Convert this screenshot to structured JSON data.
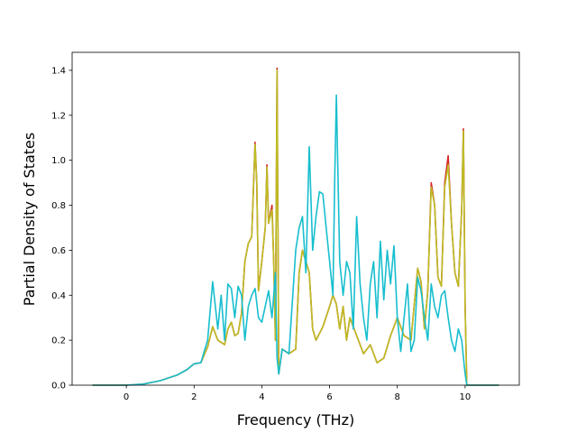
{
  "chart_data": {
    "type": "line",
    "xlabel": "Frequency (THz)",
    "ylabel": "Partial Density of States",
    "xlim": [
      -1.6,
      11.6
    ],
    "ylim": [
      0,
      1.48
    ],
    "xticks": [
      0,
      2,
      4,
      6,
      8,
      10
    ],
    "yticks": [
      0.0,
      0.2,
      0.4,
      0.6,
      0.8,
      1.0,
      1.2,
      1.4
    ],
    "grid": false,
    "series": [
      {
        "color": "#d62728",
        "points": [
          [
            -1.0,
            0.0
          ],
          [
            0.0,
            0.0
          ],
          [
            0.5,
            0.005
          ],
          [
            1.0,
            0.02
          ],
          [
            1.5,
            0.045
          ],
          [
            1.8,
            0.07
          ],
          [
            2.0,
            0.095
          ],
          [
            2.2,
            0.1
          ],
          [
            2.4,
            0.17
          ],
          [
            2.55,
            0.26
          ],
          [
            2.7,
            0.2
          ],
          [
            2.9,
            0.18
          ],
          [
            3.0,
            0.25
          ],
          [
            3.1,
            0.28
          ],
          [
            3.2,
            0.22
          ],
          [
            3.3,
            0.23
          ],
          [
            3.4,
            0.32
          ],
          [
            3.5,
            0.55
          ],
          [
            3.6,
            0.63
          ],
          [
            3.7,
            0.66
          ],
          [
            3.8,
            1.08
          ],
          [
            3.85,
            0.9
          ],
          [
            3.9,
            0.42
          ],
          [
            4.0,
            0.55
          ],
          [
            4.1,
            0.7
          ],
          [
            4.15,
            0.98
          ],
          [
            4.2,
            0.72
          ],
          [
            4.3,
            0.8
          ],
          [
            4.35,
            0.55
          ],
          [
            4.4,
            0.2
          ],
          [
            4.45,
            1.41
          ],
          [
            4.5,
            0.05
          ],
          [
            4.6,
            0.16
          ],
          [
            4.8,
            0.14
          ],
          [
            5.0,
            0.16
          ],
          [
            5.1,
            0.5
          ],
          [
            5.2,
            0.6
          ],
          [
            5.3,
            0.55
          ],
          [
            5.4,
            0.5
          ],
          [
            5.5,
            0.25
          ],
          [
            5.6,
            0.2
          ],
          [
            5.8,
            0.26
          ],
          [
            6.0,
            0.35
          ],
          [
            6.1,
            0.4
          ],
          [
            6.2,
            0.36
          ],
          [
            6.3,
            0.25
          ],
          [
            6.4,
            0.35
          ],
          [
            6.5,
            0.2
          ],
          [
            6.6,
            0.3
          ],
          [
            6.8,
            0.22
          ],
          [
            7.0,
            0.14
          ],
          [
            7.2,
            0.18
          ],
          [
            7.4,
            0.1
          ],
          [
            7.6,
            0.12
          ],
          [
            7.8,
            0.22
          ],
          [
            8.0,
            0.3
          ],
          [
            8.2,
            0.22
          ],
          [
            8.4,
            0.2
          ],
          [
            8.6,
            0.52
          ],
          [
            8.7,
            0.46
          ],
          [
            8.8,
            0.25
          ],
          [
            8.9,
            0.42
          ],
          [
            9.0,
            0.9
          ],
          [
            9.1,
            0.8
          ],
          [
            9.2,
            0.48
          ],
          [
            9.3,
            0.44
          ],
          [
            9.4,
            0.9
          ],
          [
            9.5,
            1.02
          ],
          [
            9.6,
            0.72
          ],
          [
            9.7,
            0.5
          ],
          [
            9.8,
            0.44
          ],
          [
            9.9,
            0.78
          ],
          [
            9.95,
            1.14
          ],
          [
            10.0,
            0.35
          ],
          [
            10.05,
            0.0
          ],
          [
            11.0,
            0.0
          ]
        ]
      },
      {
        "color": "#bcbd22",
        "points": [
          [
            -1.0,
            0.0
          ],
          [
            0.0,
            0.0
          ],
          [
            0.5,
            0.005
          ],
          [
            1.0,
            0.02
          ],
          [
            1.5,
            0.045
          ],
          [
            1.8,
            0.07
          ],
          [
            2.0,
            0.095
          ],
          [
            2.2,
            0.1
          ],
          [
            2.4,
            0.17
          ],
          [
            2.55,
            0.26
          ],
          [
            2.7,
            0.2
          ],
          [
            2.9,
            0.18
          ],
          [
            3.0,
            0.25
          ],
          [
            3.1,
            0.28
          ],
          [
            3.2,
            0.22
          ],
          [
            3.3,
            0.23
          ],
          [
            3.4,
            0.32
          ],
          [
            3.5,
            0.55
          ],
          [
            3.6,
            0.63
          ],
          [
            3.7,
            0.66
          ],
          [
            3.8,
            1.07
          ],
          [
            3.85,
            0.9
          ],
          [
            3.9,
            0.42
          ],
          [
            4.0,
            0.55
          ],
          [
            4.1,
            0.7
          ],
          [
            4.15,
            0.97
          ],
          [
            4.2,
            0.72
          ],
          [
            4.3,
            0.78
          ],
          [
            4.35,
            0.55
          ],
          [
            4.4,
            0.2
          ],
          [
            4.45,
            1.4
          ],
          [
            4.5,
            0.05
          ],
          [
            4.6,
            0.16
          ],
          [
            4.8,
            0.14
          ],
          [
            5.0,
            0.16
          ],
          [
            5.1,
            0.5
          ],
          [
            5.2,
            0.6
          ],
          [
            5.3,
            0.55
          ],
          [
            5.4,
            0.5
          ],
          [
            5.5,
            0.25
          ],
          [
            5.6,
            0.2
          ],
          [
            5.8,
            0.26
          ],
          [
            6.0,
            0.35
          ],
          [
            6.1,
            0.4
          ],
          [
            6.2,
            0.36
          ],
          [
            6.3,
            0.25
          ],
          [
            6.4,
            0.35
          ],
          [
            6.5,
            0.2
          ],
          [
            6.6,
            0.3
          ],
          [
            6.8,
            0.22
          ],
          [
            7.0,
            0.14
          ],
          [
            7.2,
            0.18
          ],
          [
            7.4,
            0.1
          ],
          [
            7.6,
            0.12
          ],
          [
            7.8,
            0.22
          ],
          [
            8.0,
            0.3
          ],
          [
            8.2,
            0.22
          ],
          [
            8.4,
            0.2
          ],
          [
            8.6,
            0.52
          ],
          [
            8.7,
            0.46
          ],
          [
            8.8,
            0.25
          ],
          [
            8.9,
            0.42
          ],
          [
            9.0,
            0.88
          ],
          [
            9.1,
            0.8
          ],
          [
            9.2,
            0.48
          ],
          [
            9.3,
            0.44
          ],
          [
            9.4,
            0.88
          ],
          [
            9.5,
            0.98
          ],
          [
            9.6,
            0.72
          ],
          [
            9.7,
            0.5
          ],
          [
            9.8,
            0.44
          ],
          [
            9.9,
            0.78
          ],
          [
            9.95,
            1.13
          ],
          [
            10.0,
            0.35
          ],
          [
            10.05,
            0.0
          ],
          [
            11.0,
            0.0
          ]
        ]
      },
      {
        "color": "#17becf",
        "points": [
          [
            -1.0,
            0.0
          ],
          [
            0.0,
            0.0
          ],
          [
            0.5,
            0.005
          ],
          [
            1.0,
            0.02
          ],
          [
            1.5,
            0.045
          ],
          [
            1.8,
            0.07
          ],
          [
            2.0,
            0.095
          ],
          [
            2.2,
            0.1
          ],
          [
            2.4,
            0.2
          ],
          [
            2.55,
            0.46
          ],
          [
            2.7,
            0.25
          ],
          [
            2.8,
            0.4
          ],
          [
            2.9,
            0.2
          ],
          [
            3.0,
            0.45
          ],
          [
            3.1,
            0.43
          ],
          [
            3.2,
            0.3
          ],
          [
            3.3,
            0.44
          ],
          [
            3.4,
            0.4
          ],
          [
            3.5,
            0.2
          ],
          [
            3.6,
            0.35
          ],
          [
            3.7,
            0.4
          ],
          [
            3.8,
            0.43
          ],
          [
            3.9,
            0.3
          ],
          [
            4.0,
            0.28
          ],
          [
            4.1,
            0.35
          ],
          [
            4.2,
            0.42
          ],
          [
            4.3,
            0.3
          ],
          [
            4.4,
            0.5
          ],
          [
            4.45,
            0.12
          ],
          [
            4.5,
            0.05
          ],
          [
            4.6,
            0.16
          ],
          [
            4.8,
            0.14
          ],
          [
            5.0,
            0.6
          ],
          [
            5.1,
            0.7
          ],
          [
            5.2,
            0.75
          ],
          [
            5.3,
            0.5
          ],
          [
            5.4,
            1.06
          ],
          [
            5.5,
            0.6
          ],
          [
            5.6,
            0.75
          ],
          [
            5.7,
            0.86
          ],
          [
            5.8,
            0.85
          ],
          [
            5.9,
            0.7
          ],
          [
            6.0,
            0.55
          ],
          [
            6.1,
            0.4
          ],
          [
            6.15,
            0.9
          ],
          [
            6.2,
            1.29
          ],
          [
            6.3,
            0.55
          ],
          [
            6.4,
            0.4
          ],
          [
            6.5,
            0.55
          ],
          [
            6.6,
            0.5
          ],
          [
            6.7,
            0.25
          ],
          [
            6.8,
            0.75
          ],
          [
            6.9,
            0.45
          ],
          [
            7.0,
            0.3
          ],
          [
            7.1,
            0.2
          ],
          [
            7.2,
            0.45
          ],
          [
            7.3,
            0.55
          ],
          [
            7.4,
            0.3
          ],
          [
            7.5,
            0.64
          ],
          [
            7.6,
            0.38
          ],
          [
            7.7,
            0.6
          ],
          [
            7.8,
            0.45
          ],
          [
            7.9,
            0.62
          ],
          [
            8.0,
            0.3
          ],
          [
            8.1,
            0.15
          ],
          [
            8.2,
            0.3
          ],
          [
            8.3,
            0.45
          ],
          [
            8.4,
            0.15
          ],
          [
            8.5,
            0.2
          ],
          [
            8.6,
            0.48
          ],
          [
            8.7,
            0.42
          ],
          [
            8.8,
            0.3
          ],
          [
            8.9,
            0.2
          ],
          [
            9.0,
            0.45
          ],
          [
            9.1,
            0.35
          ],
          [
            9.2,
            0.3
          ],
          [
            9.3,
            0.4
          ],
          [
            9.4,
            0.42
          ],
          [
            9.5,
            0.3
          ],
          [
            9.6,
            0.2
          ],
          [
            9.7,
            0.15
          ],
          [
            9.8,
            0.25
          ],
          [
            9.9,
            0.2
          ],
          [
            10.0,
            0.05
          ],
          [
            10.05,
            0.0
          ],
          [
            11.0,
            0.0
          ]
        ]
      }
    ]
  }
}
